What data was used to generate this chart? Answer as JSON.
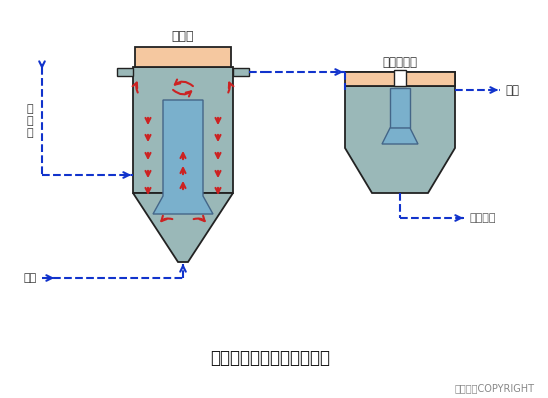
{
  "title": "三相生物流化床的工艺流程",
  "copyright": "东方仿真COPYRIGHT",
  "label_fluidbed": "流化床",
  "label_settler": "二次沉淠池",
  "label_effluent": "出水",
  "label_sludge": "污泥排放",
  "label_raw_water": "原\n污\n水",
  "label_air": "空气",
  "bg_color": "#ffffff",
  "tank_fill": "#9ab8b8",
  "tank_stroke": "#222222",
  "inner_tube_fill": "#7ab0cc",
  "top_cap_fill": "#f5c8a0",
  "settler_fill": "#9ab8b8",
  "settler_top_fill": "#f5c8a0",
  "settler_inner_fill": "#7ab0cc",
  "red_arrow": "#cc2222",
  "blue_dashed": "#1133cc",
  "title_fontsize": 12,
  "label_fontsize": 8
}
